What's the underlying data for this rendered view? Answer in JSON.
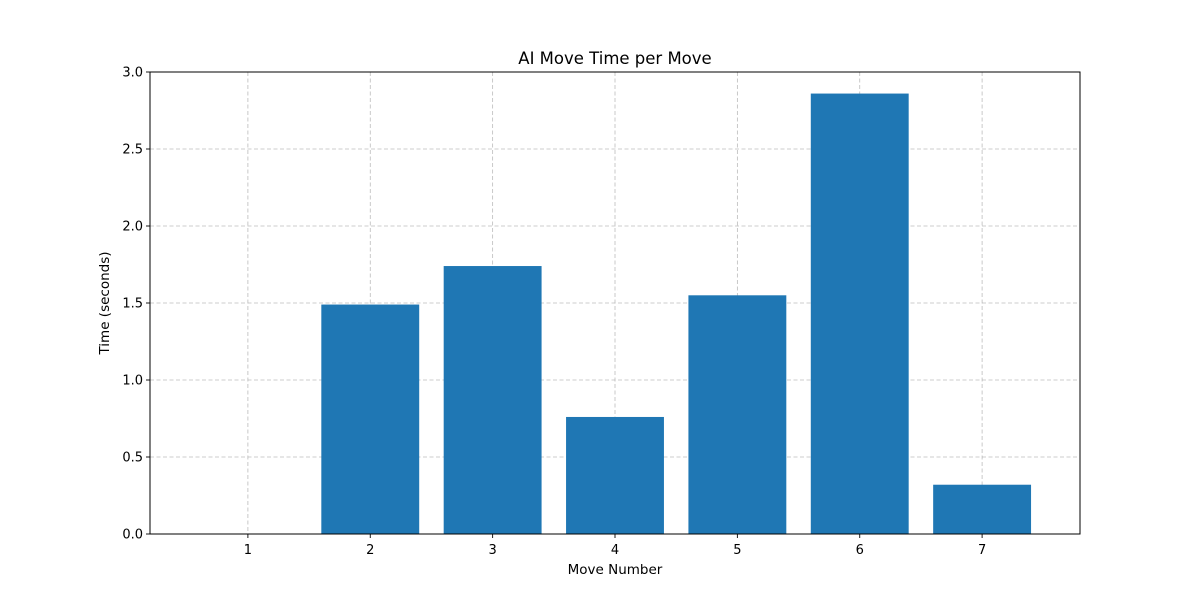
{
  "chart_data": {
    "type": "bar",
    "title": "AI Move Time per Move",
    "xlabel": "Move Number",
    "ylabel": "Time (seconds)",
    "categories": [
      "1",
      "2",
      "3",
      "4",
      "5",
      "6",
      "7"
    ],
    "values": [
      0.0,
      1.49,
      1.74,
      0.76,
      1.55,
      2.86,
      0.32
    ],
    "ylim": [
      0,
      3.0
    ],
    "yticks": [
      0.0,
      0.5,
      1.0,
      1.5,
      2.0,
      2.5,
      3.0
    ],
    "ytick_labels": [
      "0.0",
      "0.5",
      "1.0",
      "1.5",
      "2.0",
      "2.5",
      "3.0"
    ],
    "grid": true,
    "colors": {
      "bar": "#1f77b4",
      "grid": "#b0b0b0",
      "axis": "#000000"
    }
  }
}
